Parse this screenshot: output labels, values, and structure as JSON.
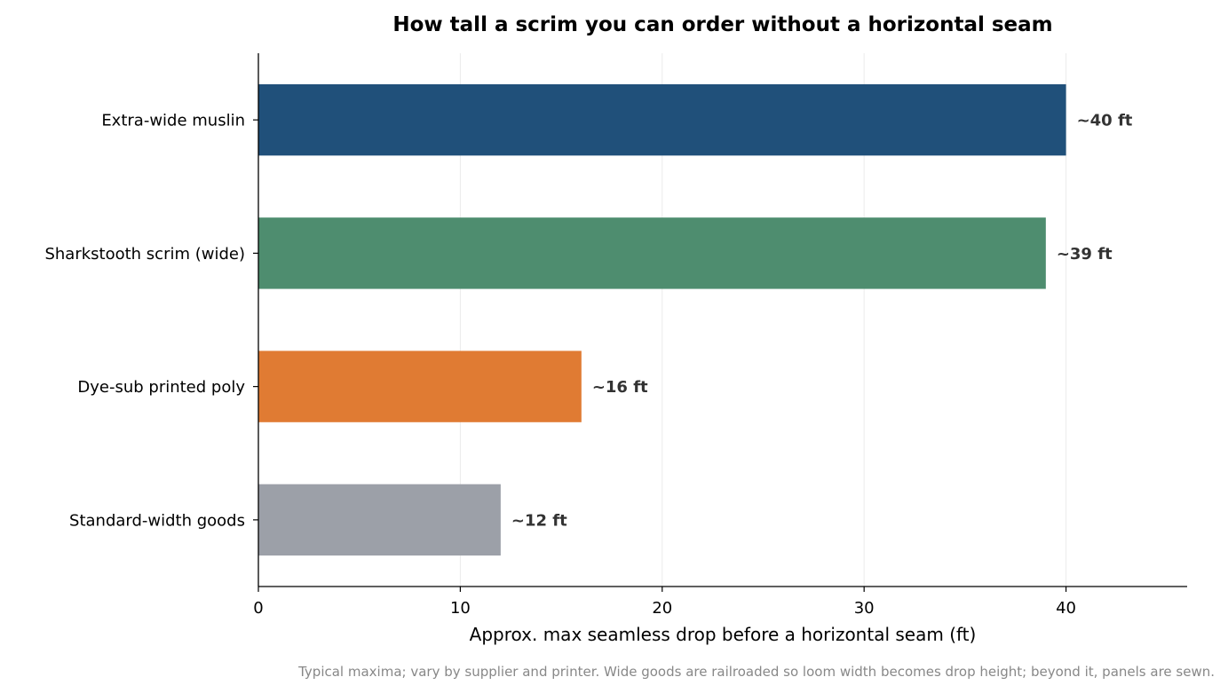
{
  "chart_data": {
    "type": "bar",
    "orientation": "horizontal",
    "title": "How tall a scrim you can order without a horizontal seam",
    "xlabel": "Approx. max seamless drop before a horizontal seam (ft)",
    "ylabel": "",
    "xlim": [
      0,
      46
    ],
    "xticks": [
      0,
      10,
      20,
      30,
      40
    ],
    "grid": "vertical",
    "categories": [
      "Extra-wide muslin",
      "Sharkstooth scrim (wide)",
      "Dye-sub printed poly",
      "Standard-width goods"
    ],
    "values": [
      40,
      39,
      16,
      12
    ],
    "data_labels": [
      "~40 ft",
      "~39 ft",
      "~16 ft",
      "~12 ft"
    ],
    "colors": [
      "#20507a",
      "#4e8d6f",
      "#e07b33",
      "#9ca0a8"
    ],
    "footnote": "Typical maxima; vary by supplier and printer. Wide goods are railroaded so loom width becomes drop height; beyond it, panels are sewn."
  }
}
